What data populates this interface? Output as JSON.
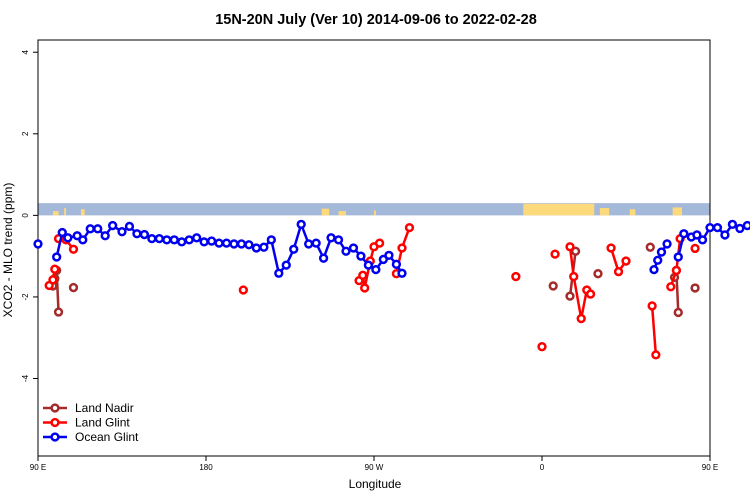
{
  "chart_data": {
    "type": "line",
    "title": "15N-20N July (Ver 10)   2014-09-06 to 2022-02-28",
    "xlabel": "Longitude",
    "ylabel": "XCO2 - MLO trend (ppm)",
    "xlim": [
      -180,
      180
    ],
    "ylim": [
      -5.9,
      4.3
    ],
    "xticks": [
      {
        "value": -180,
        "label": "90 E"
      },
      {
        "value": -90,
        "label": "180"
      },
      {
        "value": 0,
        "label": "90 W"
      },
      {
        "value": 90,
        "label": "0"
      },
      {
        "value": 180,
        "label": "90 E"
      },
      {
        "value": 270,
        "label": "180"
      }
    ],
    "yticks": [
      {
        "value": 4,
        "label": "4"
      },
      {
        "value": 2,
        "label": "2"
      },
      {
        "value": 0,
        "label": "0"
      },
      {
        "value": -2,
        "label": "-2"
      },
      {
        "value": -4,
        "label": "-4"
      }
    ],
    "land_band": {
      "y_range": [
        0,
        0.3
      ],
      "ocean_color": "#a4b8d9",
      "land_color": "#fcd97a"
    },
    "legend_position": "bottom-left",
    "series": [
      {
        "name": "Land Nadir",
        "color": "#a52a2a",
        "segments": [
          [
            [
              -172,
              -1.73
            ],
            [
              -171,
              -1.55
            ],
            [
              -170,
              -1.35
            ],
            [
              -169,
              -2.37
            ]
          ],
          [
            [
              -161,
              -1.77
            ]
          ],
          [
            [
              96,
              -1.73
            ]
          ],
          [
            [
              105,
              -1.98
            ],
            [
              108,
              -0.88
            ]
          ],
          [
            [
              120,
              -1.43
            ]
          ],
          [
            [
              148,
              -0.78
            ]
          ],
          [
            [
              161,
              -1.52
            ],
            [
              162,
              -1.35
            ],
            [
              163,
              -2.38
            ]
          ],
          [
            [
              172,
              -1.78
            ]
          ]
        ]
      },
      {
        "name": "Land Glint",
        "color": "#ff0000",
        "segments": [
          [
            [
              -174,
              -1.72
            ],
            [
              -172,
              -1.58
            ],
            [
              -171,
              -1.32
            ]
          ],
          [
            [
              -169,
              -0.57
            ],
            [
              -165,
              -0.6
            ],
            [
              -161,
              -0.83
            ]
          ],
          [
            [
              -70,
              -1.83
            ]
          ],
          [
            [
              -8,
              -1.6
            ],
            [
              -6,
              -1.47
            ],
            [
              -5,
              -1.78
            ],
            [
              -2,
              -1.12
            ],
            [
              0,
              -0.77
            ],
            [
              3,
              -0.68
            ]
          ],
          [
            [
              12,
              -1.43
            ],
            [
              15,
              -0.8
            ],
            [
              19,
              -0.3
            ]
          ],
          [
            [
              76,
              -1.5
            ]
          ],
          [
            [
              90,
              -3.22
            ]
          ],
          [
            [
              97,
              -0.95
            ]
          ],
          [
            [
              105,
              -0.77
            ],
            [
              107,
              -1.5
            ],
            [
              111,
              -2.53
            ],
            [
              114,
              -1.83
            ]
          ],
          [
            [
              116,
              -1.93
            ]
          ],
          [
            [
              127,
              -0.8
            ],
            [
              131,
              -1.38
            ],
            [
              135,
              -1.12
            ]
          ],
          [
            [
              149,
              -2.22
            ],
            [
              151,
              -3.42
            ]
          ],
          [
            [
              159,
              -1.75
            ],
            [
              162,
              -1.35
            ],
            [
              164,
              -0.57
            ]
          ],
          [
            [
              172,
              -0.81
            ]
          ]
        ]
      },
      {
        "name": "Ocean Glint",
        "color": "#0000ee",
        "segments": [
          [
            [
              -180,
              -0.7
            ]
          ],
          [
            [
              -170,
              -1.02
            ],
            [
              -167,
              -0.42
            ],
            [
              -164,
              -0.55
            ],
            [
              -159,
              -0.5
            ],
            [
              -156,
              -0.6
            ],
            [
              -152,
              -0.33
            ],
            [
              -148,
              -0.33
            ],
            [
              -144,
              -0.5
            ],
            [
              -140,
              -0.25
            ],
            [
              -135,
              -0.4
            ],
            [
              -131,
              -0.27
            ],
            [
              -127,
              -0.45
            ],
            [
              -123,
              -0.47
            ],
            [
              -119,
              -0.57
            ],
            [
              -115,
              -0.57
            ],
            [
              -111,
              -0.6
            ],
            [
              -107,
              -0.6
            ],
            [
              -103,
              -0.65
            ],
            [
              -99,
              -0.6
            ],
            [
              -95,
              -0.55
            ],
            [
              -91,
              -0.65
            ],
            [
              -87,
              -0.63
            ],
            [
              -83,
              -0.68
            ],
            [
              -79,
              -0.68
            ],
            [
              -75,
              -0.7
            ],
            [
              -71,
              -0.7
            ],
            [
              -67,
              -0.72
            ],
            [
              -63,
              -0.8
            ],
            [
              -59,
              -0.78
            ],
            [
              -55,
              -0.6
            ],
            [
              -51,
              -1.42
            ],
            [
              -47,
              -1.22
            ],
            [
              -43,
              -0.83
            ],
            [
              -39,
              -0.22
            ],
            [
              -35,
              -0.7
            ],
            [
              -31,
              -0.68
            ],
            [
              -27,
              -1.05
            ],
            [
              -23,
              -0.55
            ],
            [
              -19,
              -0.6
            ],
            [
              -15,
              -0.88
            ],
            [
              -11,
              -0.8
            ],
            [
              -7,
              -1.0
            ],
            [
              -3,
              -1.22
            ],
            [
              1,
              -1.33
            ],
            [
              5,
              -1.08
            ],
            [
              8,
              -0.98
            ],
            [
              12,
              -1.2
            ],
            [
              15,
              -1.42
            ]
          ],
          [
            [
              150,
              -1.33
            ],
            [
              152,
              -1.1
            ],
            [
              154,
              -0.9
            ],
            [
              157,
              -0.7
            ]
          ],
          [
            [
              163,
              -1.02
            ],
            [
              166,
              -0.45
            ],
            [
              170,
              -0.53
            ],
            [
              173,
              -0.48
            ],
            [
              176,
              -0.6
            ],
            [
              180,
              -0.3
            ],
            [
              184,
              -0.3
            ],
            [
              188,
              -0.48
            ],
            [
              192,
              -0.22
            ],
            [
              196,
              -0.32
            ],
            [
              200,
              -0.25
            ],
            [
              204,
              -0.43
            ],
            [
              208,
              -0.48
            ],
            [
              212,
              -0.58
            ],
            [
              216,
              -0.58
            ]
          ]
        ]
      }
    ]
  }
}
